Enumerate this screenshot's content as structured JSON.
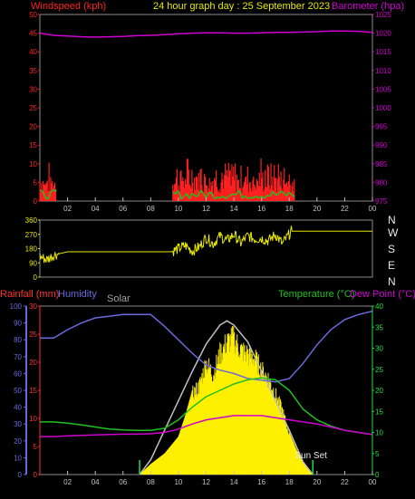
{
  "header": {
    "left_label": "Windspeed (kph)",
    "title": "24 hour graph day : 25 September 2023",
    "right_label": "Barometer (hpa)"
  },
  "colors": {
    "background": "#000000",
    "frame": "#8c8c8c",
    "wind": "#ff2020",
    "gust": "#20c020",
    "barometer": "#d000d0",
    "direction": "#e8e800",
    "humidity": "#6a6adc",
    "rainfall": "#ff3030",
    "solar_label": "#a8a0a0",
    "solar_fill": "#fff000",
    "solar_curve": "#c0c0c0",
    "temperature": "#20c020",
    "dewpoint": "#d000d0",
    "axis_text": "#c0c0c0",
    "green_axis": "#20e040",
    "blue_axis": "#6a6adc"
  },
  "chart_data": [
    {
      "type": "line",
      "name": "wind-barometer",
      "title": "24 hour graph day : 25 September 2023",
      "x_ticks": [
        "02",
        "04",
        "06",
        "08",
        "10",
        "12",
        "14",
        "16",
        "18",
        "20",
        "22",
        "00"
      ],
      "xlim": [
        0,
        24
      ],
      "ylabel_left": "Windspeed (kph)",
      "ylim_left": [
        0,
        50
      ],
      "yticks_left": [
        "0",
        "5",
        "10",
        "15",
        "20",
        "25",
        "30",
        "35",
        "40",
        "45",
        "50"
      ],
      "ylabel_right": "Barometer (hpa)",
      "ylim_right": [
        974,
        1026
      ],
      "yticks_right": [
        "975",
        "980",
        "985",
        "990",
        "995",
        "1000",
        "1005",
        "1010",
        "1015",
        "1020",
        "1025"
      ],
      "series": [
        {
          "key": "barometer",
          "x": [
            0,
            1,
            2,
            3,
            4,
            5,
            6,
            7,
            8,
            9,
            10,
            11,
            12,
            13,
            14,
            15,
            16,
            17,
            18,
            19,
            20,
            21,
            22,
            23,
            24
          ],
          "y": [
            1020.8,
            1020.2,
            1020.0,
            1019.8,
            1019.7,
            1019.8,
            1019.9,
            1020.1,
            1020.2,
            1020.4,
            1020.6,
            1020.8,
            1020.9,
            1020.9,
            1020.8,
            1020.8,
            1020.9,
            1021.0,
            1021.0,
            1021.1,
            1021.2,
            1021.4,
            1021.4,
            1021.3,
            1021.0
          ]
        }
      ],
      "wind_bars": [
        {
          "range": [
            0,
            1.2
          ],
          "min": 2,
          "max": 11
        },
        {
          "range": [
            9.6,
            18.4
          ],
          "min": 2,
          "max": 13
        }
      ]
    },
    {
      "type": "line",
      "name": "wind-direction",
      "x_ticks": [],
      "xlim": [
        0,
        24
      ],
      "ylim": [
        0,
        360
      ],
      "yticks_left": [
        "0",
        "90",
        "180",
        "270",
        "360"
      ],
      "right_labels": [
        "N",
        "W",
        "S",
        "E",
        "N"
      ],
      "series": [
        {
          "key": "direction",
          "x": [
            0,
            0.5,
            1,
            1.5,
            2,
            3,
            4,
            5,
            6,
            7,
            8,
            8.5,
            9,
            9.5,
            10,
            10.5,
            11,
            11.5,
            12,
            12.5,
            13,
            13.5,
            14,
            14.5,
            15,
            15.5,
            16,
            16.5,
            17,
            17.5,
            18,
            18.1,
            19,
            20,
            21,
            22,
            23,
            24
          ],
          "y": [
            130,
            110,
            140,
            150,
            160,
            160,
            160,
            160,
            160,
            160,
            160,
            160,
            160,
            160,
            180,
            200,
            165,
            190,
            250,
            210,
            260,
            230,
            270,
            215,
            260,
            240,
            245,
            230,
            270,
            210,
            270,
            290,
            290,
            290,
            290,
            290,
            290,
            290
          ]
        }
      ]
    },
    {
      "type": "area",
      "name": "weather-lower",
      "x_ticks": [
        "02",
        "04",
        "06",
        "08",
        "10",
        "12",
        "14",
        "16",
        "18",
        "20",
        "22",
        "00"
      ],
      "xlim": [
        0,
        24
      ],
      "legend": [
        "Rainfall (mm)",
        "Humidity",
        "Solar",
        "Temperature (°C)",
        "Dew Point (°C)"
      ],
      "yticks_humidity": [
        "0",
        "10",
        "20",
        "30",
        "40",
        "50",
        "60",
        "70",
        "80",
        "90",
        "100"
      ],
      "ylim_humidity": [
        0,
        100
      ],
      "yticks_rain": [
        "0",
        "5",
        "10",
        "15",
        "20",
        "25",
        "30"
      ],
      "ylim_rain": [
        0,
        30
      ],
      "yticks_temp": [
        "0",
        "5",
        "10",
        "15",
        "20",
        "25",
        "30",
        "35",
        "40"
      ],
      "ylim_temp": [
        0,
        40
      ],
      "annotation": "Sun Set",
      "series": [
        {
          "key": "humidity",
          "x": [
            0,
            1,
            2,
            3,
            4,
            5,
            6,
            7,
            8,
            9,
            10,
            11,
            12,
            13,
            14,
            15,
            16,
            17,
            18,
            19,
            20,
            21,
            22,
            23,
            24
          ],
          "y": [
            81,
            81,
            86,
            90,
            93,
            94,
            95,
            95,
            95,
            88,
            80,
            72,
            65,
            62,
            60,
            57,
            56,
            55,
            57,
            66,
            77,
            86,
            92,
            95,
            97
          ]
        },
        {
          "key": "temperature",
          "x": [
            0,
            1,
            2,
            3,
            4,
            5,
            6,
            7,
            8,
            9,
            10,
            11,
            12,
            13,
            14,
            15,
            16,
            17,
            18,
            19,
            20,
            21,
            22,
            23,
            24
          ],
          "y": [
            12.5,
            12.5,
            12.2,
            11.8,
            11.3,
            10.8,
            10.6,
            10.5,
            10.5,
            11.0,
            13.0,
            16.0,
            18.5,
            20.0,
            21.5,
            22.5,
            23.0,
            22.5,
            20.0,
            15.5,
            13.0,
            11.5,
            10.5,
            10.0,
            9.5
          ]
        },
        {
          "key": "dewpoint",
          "x": [
            0,
            1,
            2,
            3,
            4,
            5,
            6,
            7,
            8,
            9,
            10,
            11,
            12,
            13,
            14,
            15,
            16,
            17,
            18,
            19,
            20,
            21,
            22,
            23,
            24
          ],
          "y": [
            9.0,
            9.0,
            9.2,
            9.3,
            9.4,
            9.5,
            9.6,
            9.6,
            9.7,
            10.0,
            10.8,
            12.0,
            13.0,
            13.5,
            14.0,
            14.0,
            14.0,
            13.5,
            13.0,
            12.5,
            12.0,
            11.3,
            10.5,
            10.0,
            9.5
          ]
        },
        {
          "key": "solar_max",
          "x": [
            7.2,
            8,
            9,
            10,
            11,
            12,
            13,
            13.5,
            14,
            15,
            16,
            17,
            18,
            19,
            19.7
          ],
          "y": [
            0,
            3.5,
            10.5,
            17.5,
            24.5,
            31.0,
            35.5,
            36.5,
            35.5,
            31.5,
            24.5,
            17.5,
            10.5,
            3.0,
            0
          ]
        },
        {
          "key": "solar",
          "x": [
            7.2,
            8,
            9,
            10,
            10.5,
            11,
            11.5,
            12,
            12.5,
            13,
            13.5,
            14,
            14.5,
            15,
            15.5,
            16,
            16.5,
            17,
            17.5,
            18,
            18.5,
            19,
            19.7
          ],
          "y": [
            0,
            2.5,
            5,
            9,
            14,
            20,
            22,
            28,
            25,
            30,
            33,
            34,
            31,
            30,
            29,
            26,
            24,
            20,
            16,
            10,
            6,
            3,
            0
          ]
        }
      ],
      "rainfall": []
    }
  ]
}
